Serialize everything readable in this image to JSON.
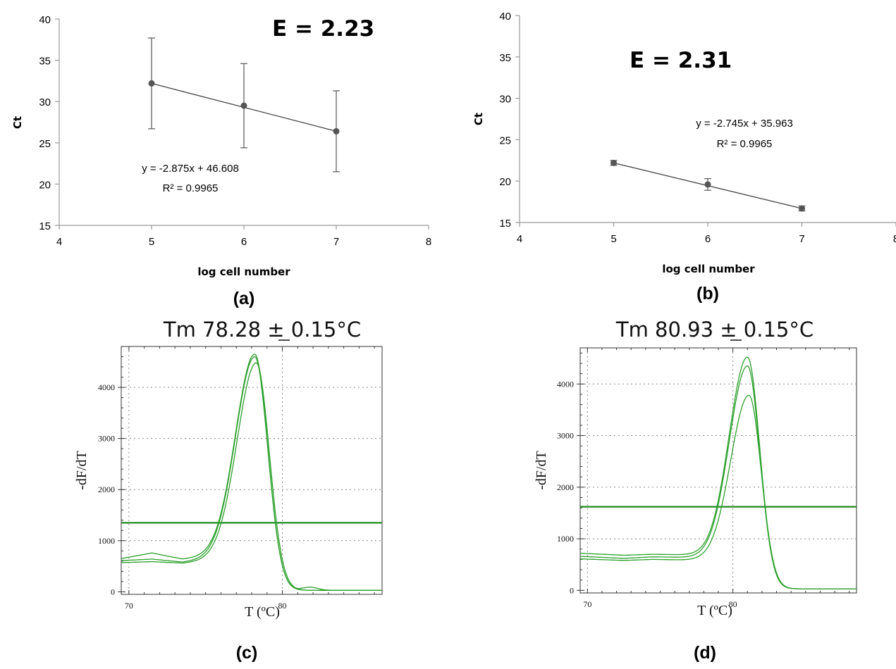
{
  "chart_data": [
    {
      "type": "scatter",
      "panel_label": "(a)",
      "efficiency_label": "E = 2.23",
      "xlabel": "log cell number",
      "ylabel": "Ct",
      "xlim": [
        4,
        8
      ],
      "ylim": [
        15,
        40
      ],
      "xticks": [
        "4",
        "5",
        "6",
        "7",
        "8"
      ],
      "yticks": [
        "15",
        "20",
        "25",
        "30",
        "35",
        "40"
      ],
      "points": [
        {
          "x": 5,
          "y": 32.2,
          "err": 5.5
        },
        {
          "x": 6,
          "y": 29.5,
          "err": 5.1
        },
        {
          "x": 7,
          "y": 26.4,
          "err": 4.9
        }
      ],
      "trendline": {
        "equation": "y = -2.875x + 46.608",
        "r2": "R² = 0.9965"
      },
      "grid": false
    },
    {
      "type": "scatter",
      "panel_label": "(b)",
      "efficiency_label": "E = 2.31",
      "xlabel": "log cell number",
      "ylabel": "Ct",
      "xlim": [
        4,
        8
      ],
      "ylim": [
        15,
        40
      ],
      "xticks": [
        "4",
        "5",
        "6",
        "7",
        "8"
      ],
      "yticks": [
        "15",
        "20",
        "25",
        "30",
        "35",
        "40"
      ],
      "points": [
        {
          "x": 5,
          "y": 22.2,
          "err": 0.3
        },
        {
          "x": 6,
          "y": 19.6,
          "err": 0.7
        },
        {
          "x": 7,
          "y": 16.7,
          "err": 0.3
        }
      ],
      "trendline": {
        "equation": "y = -2.745x + 35.963",
        "r2": "R² = 0.9965"
      },
      "grid": false
    },
    {
      "type": "line",
      "panel_label": "(c)",
      "title": "Tm 78.28 ± 0.15°C",
      "xlabel": "T (ºC)",
      "ylabel": "-dF/dT",
      "xlim": [
        69.5,
        86.5
      ],
      "ylim": [
        -50,
        4800
      ],
      "xticks": [
        "70",
        "80"
      ],
      "yticks": [
        "0",
        "1000",
        "2000",
        "3000",
        "4000"
      ],
      "threshold": 1350,
      "grid": true,
      "line_color": "#2ca02c",
      "curves": [
        {
          "peak_x": 78.2,
          "peak_y": 4650,
          "base": [
            [
              69.5,
              650
            ],
            [
              71.5,
              760
            ],
            [
              73.5,
              640
            ],
            [
              75.5,
              700
            ]
          ],
          "tail_bump": 60
        },
        {
          "peak_x": 78.2,
          "peak_y": 4600,
          "base": [
            [
              69.5,
              610
            ],
            [
              71.5,
              640
            ],
            [
              73.5,
              580
            ],
            [
              75.5,
              650
            ]
          ],
          "tail_bump": 0
        },
        {
          "peak_x": 78.3,
          "peak_y": 4480,
          "base": [
            [
              69.5,
              570
            ],
            [
              71.5,
              590
            ],
            [
              73.5,
              560
            ],
            [
              75.5,
              620
            ]
          ],
          "tail_bump": 0
        }
      ]
    },
    {
      "type": "line",
      "panel_label": "(d)",
      "title": "Tm 80.93 ± 0.15°C",
      "xlabel": "T (ºC)",
      "ylabel": "-dF/dT",
      "xlim": [
        69.5,
        88.5
      ],
      "ylim": [
        -50,
        4700
      ],
      "xticks": [
        "70",
        "80"
      ],
      "yticks": [
        "0",
        "1000",
        "2000",
        "3000",
        "4000"
      ],
      "threshold": 1620,
      "grid": true,
      "line_color": "#2ca02c",
      "curves": [
        {
          "peak_x": 81.0,
          "peak_y": 4520,
          "base": [
            [
              69.5,
              720
            ],
            [
              72.5,
              680
            ],
            [
              74.5,
              700
            ],
            [
              76.5,
              690
            ]
          ],
          "tail_bump": 0
        },
        {
          "peak_x": 81.0,
          "peak_y": 4350,
          "base": [
            [
              69.5,
              660
            ],
            [
              72.5,
              620
            ],
            [
              74.5,
              650
            ],
            [
              76.5,
              640
            ]
          ],
          "tail_bump": 0
        },
        {
          "peak_x": 81.1,
          "peak_y": 3780,
          "base": [
            [
              69.5,
              610
            ],
            [
              72.5,
              580
            ],
            [
              74.5,
              600
            ],
            [
              76.5,
              590
            ]
          ],
          "tail_bump": 0
        }
      ]
    }
  ]
}
